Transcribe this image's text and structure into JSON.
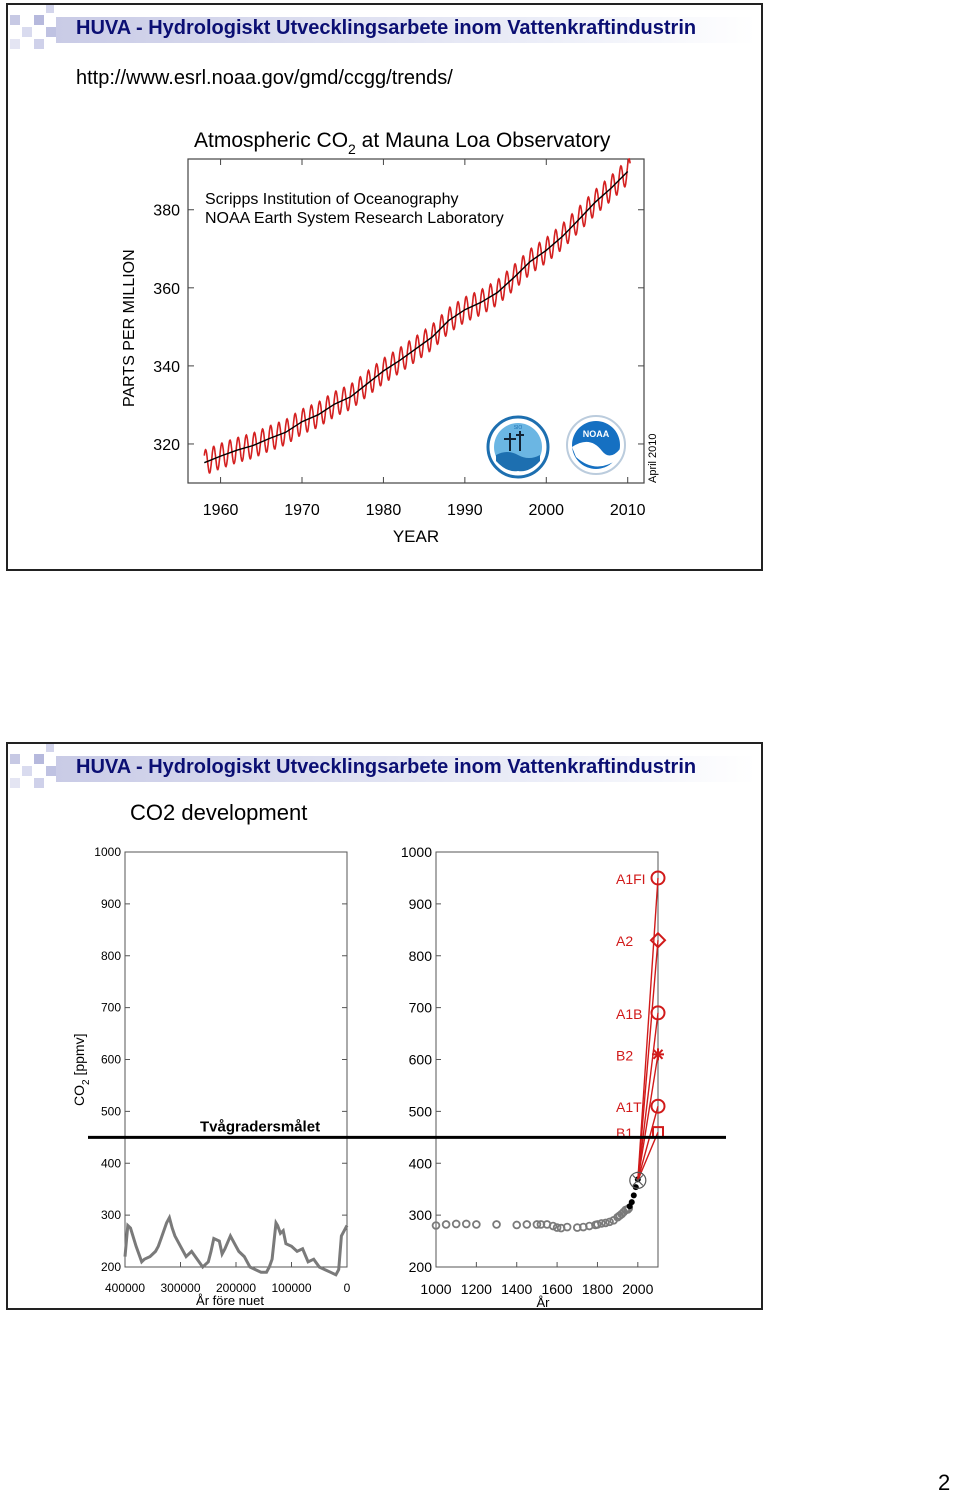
{
  "header_title": "HUVA - Hydrologiskt Utvecklingsarbete inom Vattenkraftindustrin",
  "slide1": {
    "url": "http://www.esrl.noaa.gov/gmd/ccgg/trends/",
    "chart_title_pre": "Atmospheric CO",
    "chart_title_sub": "2",
    "chart_title_post": " at Mauna Loa Observatory",
    "source1": "Scripps Institution of Oceanography",
    "source2": "NOAA Earth System Research Laboratory",
    "ylabel": "PARTS PER MILLION",
    "xlabel": "YEAR",
    "date_stamp": "April 2010",
    "logo1_label": "SIO",
    "logo2_label": "NOAA"
  },
  "slide2": {
    "title": "CO2 development",
    "ylabel_pre": "CO",
    "ylabel_sub": "2",
    "ylabel_post": " [ppmv]",
    "left_xlabel": "År före nuet",
    "right_xlabel": "År",
    "threshold_label": "Tvågradersmålet"
  },
  "page_number": "2",
  "colors": {
    "header_text": "#0b0f73",
    "seasonal": "#d42020",
    "trend": "#000000",
    "scenario": "#d11a1a",
    "historic": "#7a7a7a"
  },
  "chart_data": [
    {
      "type": "line",
      "title": "Atmospheric CO2 at Mauna Loa Observatory",
      "xlabel": "YEAR",
      "ylabel": "PARTS PER MILLION",
      "xlim": [
        1956,
        2012
      ],
      "ylim": [
        310,
        393
      ],
      "xticks": [
        1960,
        1970,
        1980,
        1990,
        2000,
        2010
      ],
      "yticks": [
        320,
        340,
        360,
        380
      ],
      "series": [
        {
          "name": "monthly",
          "x": [
            1958,
            1960,
            1962,
            1964,
            1966,
            1968,
            1970,
            1972,
            1974,
            1976,
            1978,
            1980,
            1982,
            1984,
            1986,
            1988,
            1990,
            1992,
            1994,
            1996,
            1998,
            2000,
            2002,
            2004,
            2006,
            2008,
            2010
          ],
          "y": [
            315.2,
            316.9,
            318.4,
            319.6,
            321.4,
            323.0,
            325.7,
            327.5,
            330.2,
            332.1,
            335.4,
            338.7,
            341.4,
            344.4,
            347.4,
            351.6,
            354.4,
            356.3,
            358.8,
            362.6,
            366.7,
            369.6,
            373.2,
            377.5,
            381.9,
            385.6,
            389.8
          ],
          "seasonal_amplitude": 3.2
        },
        {
          "name": "annual mean",
          "x": [
            1958,
            1960,
            1962,
            1964,
            1966,
            1968,
            1970,
            1972,
            1974,
            1976,
            1978,
            1980,
            1982,
            1984,
            1986,
            1988,
            1990,
            1992,
            1994,
            1996,
            1998,
            2000,
            2002,
            2004,
            2006,
            2008,
            2010
          ],
          "y": [
            315.2,
            316.9,
            318.4,
            319.6,
            321.4,
            323.0,
            325.7,
            327.5,
            330.2,
            332.1,
            335.4,
            338.7,
            341.4,
            344.4,
            347.4,
            351.6,
            354.4,
            356.3,
            358.8,
            362.6,
            366.7,
            369.6,
            373.2,
            377.5,
            381.9,
            385.6,
            389.8
          ]
        }
      ]
    },
    {
      "type": "line",
      "xlabel": "År före nuet",
      "ylabel": "CO2 [ppmv]",
      "xlim": [
        400000,
        0
      ],
      "ylim": [
        200,
        1000
      ],
      "xticks": [
        400000,
        300000,
        200000,
        100000,
        0
      ],
      "yticks": [
        200,
        300,
        400,
        500,
        600,
        700,
        800,
        900,
        1000
      ],
      "series": [
        {
          "x": [
            400000,
            395000,
            390000,
            380000,
            370000,
            365000,
            355000,
            345000,
            340000,
            335000,
            325000,
            320000,
            315000,
            310000,
            300000,
            290000,
            280000,
            270000,
            260000,
            250000,
            245000,
            240000,
            230000,
            225000,
            220000,
            210000,
            200000,
            195000,
            185000,
            175000,
            165000,
            155000,
            145000,
            140000,
            135000,
            128000,
            125000,
            120000,
            115000,
            110000,
            100000,
            90000,
            80000,
            70000,
            60000,
            50000,
            40000,
            30000,
            20000,
            15000,
            10000,
            5000,
            0
          ],
          "y": [
            220,
            280,
            275,
            240,
            210,
            215,
            220,
            230,
            240,
            255,
            285,
            295,
            275,
            260,
            240,
            220,
            230,
            215,
            200,
            210,
            230,
            255,
            250,
            225,
            235,
            260,
            240,
            230,
            220,
            200,
            195,
            190,
            190,
            200,
            215,
            285,
            280,
            265,
            270,
            245,
            240,
            230,
            235,
            210,
            215,
            200,
            195,
            190,
            185,
            195,
            260,
            270,
            280
          ]
        }
      ],
      "annotations": [
        "Tvågradersmålet"
      ],
      "threshold": 450
    },
    {
      "type": "scatter",
      "xlabel": "År",
      "xlim": [
        1000,
        2100
      ],
      "ylim": [
        200,
        1000
      ],
      "xticks": [
        1000,
        1200,
        1400,
        1600,
        1800,
        2000
      ],
      "yticks": [
        200,
        300,
        400,
        500,
        600,
        700,
        800,
        900,
        1000
      ],
      "series": [
        {
          "x": [
            1000,
            1050,
            1100,
            1150,
            1200,
            1300,
            1400,
            1450,
            1500,
            1520,
            1550,
            1580,
            1600,
            1620,
            1650,
            1700,
            1730,
            1760,
            1790,
            1800,
            1820,
            1840,
            1860,
            1880,
            1900,
            1910,
            1920,
            1930,
            1940,
            1950,
            1955
          ],
          "y": [
            280,
            282,
            283,
            283,
            282,
            282,
            281,
            282,
            282,
            282,
            282,
            279,
            276,
            275,
            277,
            276,
            277,
            279,
            281,
            282,
            284,
            285,
            287,
            290,
            296,
            299,
            302,
            306,
            310,
            311,
            313
          ]
        },
        {
          "x": [
            1960,
            1970,
            1980,
            1990,
            2000
          ],
          "y": [
            317,
            325,
            338,
            354,
            369
          ]
        },
        {
          "x": [
            2100,
            2100,
            2100,
            2100,
            2100,
            2100
          ],
          "y": [
            950,
            830,
            690,
            610,
            510,
            460
          ],
          "labels": [
            "A1FI",
            "A2",
            "A1B",
            "B2",
            "A1T",
            "B1"
          ]
        }
      ],
      "start_point": [
        2000,
        367
      ],
      "threshold": 450
    }
  ]
}
